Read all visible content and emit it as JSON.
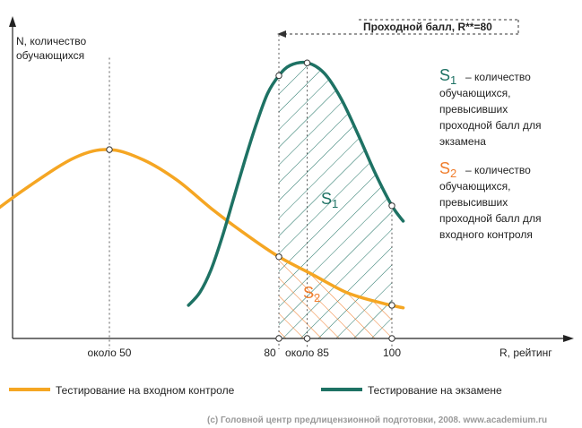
{
  "chart_data": {
    "type": "line",
    "y_axis_label_lines": [
      "N, количество",
      "обучающихся"
    ],
    "x_axis_label": "R, рейтинг",
    "x_ticks": [
      {
        "value": 50,
        "label": "около 50"
      },
      {
        "value": 80,
        "label": "80"
      },
      {
        "value": 85,
        "label": "около 85"
      },
      {
        "value": 100,
        "label": "100"
      }
    ],
    "passing_score_label": "Проходной балл, R**=80",
    "series": [
      {
        "name": "Тестирование на входном контроле",
        "color": "#f5a623",
        "x": [
          0,
          5,
          12,
          20,
          28,
          36,
          44,
          50,
          56,
          62,
          68,
          74,
          80,
          86,
          92,
          98,
          102
        ],
        "y": [
          0.11,
          0.13,
          0.19,
          0.32,
          0.47,
          0.6,
          0.71,
          0.74,
          0.7,
          0.62,
          0.51,
          0.41,
          0.32,
          0.25,
          0.18,
          0.14,
          0.12
        ]
      },
      {
        "name": "Тестирование на экзамене",
        "color": "#1e7264",
        "x": [
          64,
          66,
          68,
          70,
          72,
          74,
          76,
          78,
          80,
          82,
          85,
          88,
          91,
          94,
          97,
          100,
          102
        ],
        "y": [
          0.13,
          0.18,
          0.27,
          0.4,
          0.55,
          0.7,
          0.84,
          0.96,
          1.03,
          1.07,
          1.08,
          1.04,
          0.94,
          0.8,
          0.65,
          0.52,
          0.46
        ]
      }
    ],
    "areas": [
      {
        "label_letter": "S",
        "label_sub": "1",
        "color": "#1e7264"
      },
      {
        "label_letter": "S",
        "label_sub": "2",
        "color": "#f07d2c"
      }
    ]
  },
  "legend_notes": [
    {
      "letter": "S",
      "sub": "1",
      "color": "#1e7264",
      "lines": [
        " – количество",
        "обучающихся,",
        "превысивших",
        "проходной балл для",
        "экзамена"
      ]
    },
    {
      "letter": "S",
      "sub": "2",
      "color": "#f07d2c",
      "lines": [
        " – количество",
        "обучающихся,",
        "превысивших",
        "проходной балл для",
        "входного контроля"
      ]
    }
  ],
  "legend": [
    {
      "label": "Тестирование на входном контроле",
      "color": "#f5a623"
    },
    {
      "label": "Тестирование на экзамене",
      "color": "#1e7264"
    }
  ],
  "copyright": "(c) Головной центр предлицензионной подготовки, 2008.  www.academium.ru"
}
